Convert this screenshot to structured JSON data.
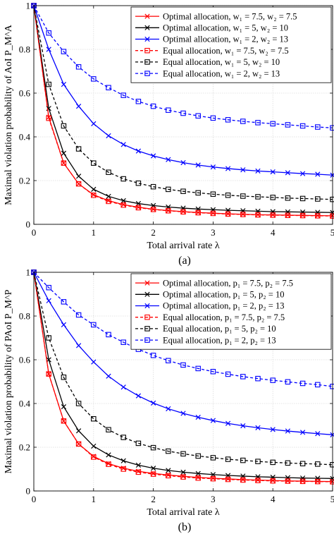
{
  "chart_data": [
    {
      "type": "line",
      "caption": "(a)",
      "xlabel": "Total arrival rate λ",
      "ylabel": "Maximal violation probability of AoI P_M^A",
      "xlim": [
        0,
        5
      ],
      "ylim": [
        0,
        1
      ],
      "xticks": [
        "0",
        "1",
        "2",
        "3",
        "4",
        "5"
      ],
      "yticks": [
        "0",
        "0.2",
        "0.4",
        "0.6",
        "0.8",
        "1"
      ],
      "grid": true,
      "legend_position": "top-right",
      "x": [
        0,
        0.25,
        0.5,
        0.75,
        1,
        1.25,
        1.5,
        1.75,
        2,
        2.25,
        2.5,
        2.75,
        3,
        3.25,
        3.5,
        3.75,
        4,
        4.25,
        4.5,
        4.75,
        5
      ],
      "series": [
        {
          "name": "Optimal allocation, w₁ = 7.5, w₂ = 7.5",
          "color": "#ff0000",
          "dash": "solid",
          "marker": "x",
          "values": [
            1.0,
            0.49,
            0.28,
            0.185,
            0.135,
            0.108,
            0.09,
            0.078,
            0.069,
            0.063,
            0.058,
            0.054,
            0.051,
            0.048,
            0.046,
            0.044,
            0.043,
            0.042,
            0.041,
            0.04,
            0.039
          ]
        },
        {
          "name": "Optimal allocation, w₁ = 5, w₂ = 10",
          "color": "#000000",
          "dash": "solid",
          "marker": "x",
          "values": [
            1.0,
            0.53,
            0.325,
            0.22,
            0.16,
            0.128,
            0.108,
            0.095,
            0.086,
            0.079,
            0.074,
            0.07,
            0.067,
            0.064,
            0.062,
            0.06,
            0.058,
            0.057,
            0.056,
            0.055,
            0.054
          ]
        },
        {
          "name": "Optimal allocation, w₁ = 2, w₂ = 13",
          "color": "#0000ff",
          "dash": "solid",
          "marker": "x",
          "values": [
            1.0,
            0.8,
            0.64,
            0.54,
            0.46,
            0.405,
            0.365,
            0.335,
            0.313,
            0.296,
            0.282,
            0.271,
            0.262,
            0.255,
            0.249,
            0.244,
            0.24,
            0.236,
            0.232,
            0.229,
            0.225
          ]
        },
        {
          "name": "Equal allocation, w₁ = 7.5, w₂ = 7.5",
          "color": "#ff0000",
          "dash": "dashed",
          "marker": "square",
          "values": [
            1.0,
            0.485,
            0.28,
            0.185,
            0.133,
            0.105,
            0.088,
            0.076,
            0.068,
            0.062,
            0.057,
            0.053,
            0.05,
            0.047,
            0.045,
            0.043,
            0.042,
            0.041,
            0.04,
            0.039,
            0.038
          ]
        },
        {
          "name": "Equal allocation, w₁ = 5, w₂ = 10",
          "color": "#000000",
          "dash": "dashed",
          "marker": "square",
          "values": [
            1.0,
            0.64,
            0.45,
            0.345,
            0.28,
            0.238,
            0.208,
            0.188,
            0.172,
            0.16,
            0.151,
            0.144,
            0.138,
            0.133,
            0.129,
            0.126,
            0.123,
            0.12,
            0.118,
            0.116,
            0.114
          ]
        },
        {
          "name": "Equal allocation, w₁ = 2, w₂ = 13",
          "color": "#0000ff",
          "dash": "dashed",
          "marker": "square",
          "values": [
            1.0,
            0.875,
            0.79,
            0.72,
            0.665,
            0.625,
            0.59,
            0.562,
            0.54,
            0.522,
            0.508,
            0.496,
            0.486,
            0.478,
            0.471,
            0.465,
            0.46,
            0.455,
            0.45,
            0.445,
            0.441
          ]
        }
      ]
    },
    {
      "type": "line",
      "caption": "(b)",
      "xlabel": "Total arrival rate λ",
      "ylabel": "Maximal violation probability of PAoI P_M^P",
      "xlim": [
        0,
        5
      ],
      "ylim": [
        0,
        1
      ],
      "xticks": [
        "0",
        "1",
        "2",
        "3",
        "4",
        "5"
      ],
      "yticks": [
        "0",
        "0.2",
        "0.4",
        "0.6",
        "0.8",
        "1"
      ],
      "grid": true,
      "legend_position": "top-right",
      "x": [
        0,
        0.25,
        0.5,
        0.75,
        1,
        1.25,
        1.5,
        1.75,
        2,
        2.25,
        2.5,
        2.75,
        3,
        3.25,
        3.5,
        3.75,
        4,
        4.25,
        4.5,
        4.75,
        5
      ],
      "series": [
        {
          "name": "Optimal allocation, p₁ = 7.5, p₂ = 7.5",
          "color": "#ff0000",
          "dash": "solid",
          "marker": "x",
          "values": [
            1.0,
            0.535,
            0.32,
            0.215,
            0.158,
            0.125,
            0.104,
            0.09,
            0.08,
            0.073,
            0.067,
            0.062,
            0.058,
            0.055,
            0.052,
            0.05,
            0.048,
            0.046,
            0.045,
            0.044,
            0.043
          ]
        },
        {
          "name": "Optimal allocation, p₁ = 5, p₂ = 10",
          "color": "#000000",
          "dash": "solid",
          "marker": "x",
          "values": [
            1.0,
            0.6,
            0.385,
            0.275,
            0.205,
            0.165,
            0.138,
            0.118,
            0.104,
            0.094,
            0.086,
            0.08,
            0.075,
            0.071,
            0.068,
            0.065,
            0.063,
            0.061,
            0.059,
            0.058,
            0.057
          ]
        },
        {
          "name": "Optimal allocation, p₁ = 2, p₂ = 13",
          "color": "#0000ff",
          "dash": "solid",
          "marker": "x",
          "values": [
            1.0,
            0.87,
            0.76,
            0.665,
            0.59,
            0.525,
            0.475,
            0.435,
            0.402,
            0.376,
            0.355,
            0.337,
            0.322,
            0.309,
            0.298,
            0.289,
            0.281,
            0.274,
            0.268,
            0.262,
            0.257
          ]
        },
        {
          "name": "Equal allocation, p₁ = 7.5, p₂ = 7.5",
          "color": "#ff0000",
          "dash": "dashed",
          "marker": "square",
          "values": [
            1.0,
            0.535,
            0.32,
            0.215,
            0.155,
            0.122,
            0.1,
            0.086,
            0.077,
            0.07,
            0.064,
            0.059,
            0.056,
            0.053,
            0.05,
            0.048,
            0.046,
            0.045,
            0.044,
            0.043,
            0.042
          ]
        },
        {
          "name": "Equal allocation, p₁ = 5, p₂ = 10",
          "color": "#000000",
          "dash": "dashed",
          "marker": "square",
          "values": [
            1.0,
            0.7,
            0.52,
            0.4,
            0.33,
            0.28,
            0.245,
            0.218,
            0.198,
            0.182,
            0.17,
            0.16,
            0.152,
            0.145,
            0.14,
            0.135,
            0.131,
            0.128,
            0.125,
            0.123,
            0.12
          ]
        },
        {
          "name": "Equal allocation, p₁ = 2, p₂ = 13",
          "color": "#0000ff",
          "dash": "dashed",
          "marker": "square",
          "values": [
            1.0,
            0.93,
            0.865,
            0.805,
            0.76,
            0.715,
            0.68,
            0.648,
            0.62,
            0.596,
            0.576,
            0.56,
            0.546,
            0.534,
            0.523,
            0.514,
            0.506,
            0.499,
            0.492,
            0.486,
            0.478
          ]
        }
      ]
    }
  ]
}
